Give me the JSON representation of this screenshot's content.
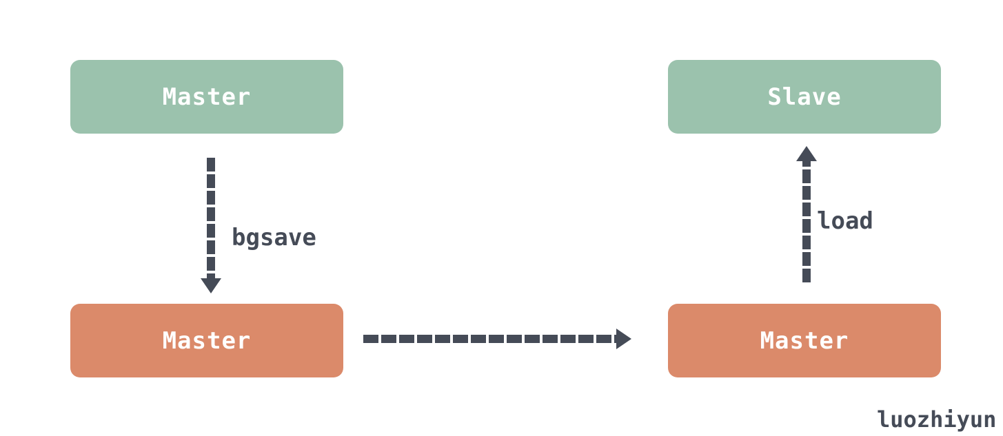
{
  "nodes": {
    "master_top": "Master",
    "slave_top": "Slave",
    "master_bottom_left": "Master",
    "master_bottom_right": "Master"
  },
  "edges": {
    "bgsave": "bgsave",
    "load": "load"
  },
  "watermark": "luozhiyun",
  "colors": {
    "green_box": "#9bc2ad",
    "orange_box": "#db8a6a",
    "arrow": "#454b57",
    "box_text": "#ffffff"
  }
}
